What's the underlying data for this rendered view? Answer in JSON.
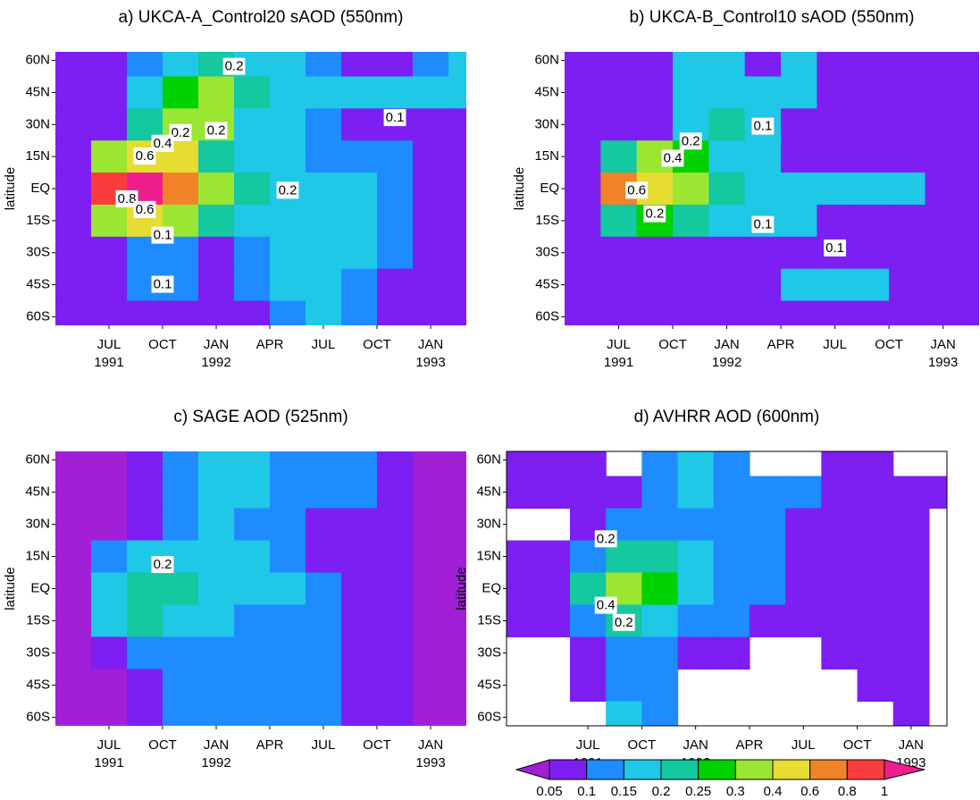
{
  "chart_data": [
    {
      "type": "contour",
      "title": "a) UKCA-A_Control20 sAOD (550nm)",
      "ylabel": "latitude",
      "xlim": [
        "1991-04",
        "1993-03"
      ],
      "ylim": [
        -64,
        64
      ],
      "xticks": [
        {
          "value": "1991-07",
          "label": [
            "JUL",
            "1991"
          ]
        },
        {
          "value": "1991-10",
          "label": [
            "OCT"
          ]
        },
        {
          "value": "1992-01",
          "label": [
            "JAN",
            "1992"
          ]
        },
        {
          "value": "1992-04",
          "label": [
            "APR"
          ]
        },
        {
          "value": "1992-07",
          "label": [
            "JUL"
          ]
        },
        {
          "value": "1992-10",
          "label": [
            "OCT"
          ]
        },
        {
          "value": "1993-01",
          "label": [
            "JAN",
            "1993"
          ]
        }
      ],
      "yticks": [
        {
          "value": 60,
          "label": "60N"
        },
        {
          "value": 45,
          "label": "45N"
        },
        {
          "value": 30,
          "label": "30N"
        },
        {
          "value": 15,
          "label": "15N"
        },
        {
          "value": 0,
          "label": "EQ"
        },
        {
          "value": -15,
          "label": "15S"
        },
        {
          "value": -30,
          "label": "30S"
        },
        {
          "value": -45,
          "label": "45S"
        },
        {
          "value": -60,
          "label": "60S"
        }
      ],
      "x": [
        "1991-05",
        "1991-07",
        "1991-09",
        "1991-11",
        "1992-01",
        "1992-03",
        "1992-05",
        "1992-07",
        "1992-09",
        "1992-11",
        "1993-01",
        "1993-03"
      ],
      "y": [
        60,
        45,
        30,
        15,
        0,
        -15,
        -30,
        -45,
        -60
      ],
      "z": [
        [
          0.07,
          0.07,
          0.12,
          0.18,
          0.22,
          0.17,
          0.16,
          0.12,
          0.07,
          0.07,
          0.12,
          0.17
        ],
        [
          0.07,
          0.07,
          0.16,
          0.28,
          0.35,
          0.2,
          0.17,
          0.16,
          0.16,
          0.16,
          0.16,
          0.16
        ],
        [
          0.07,
          0.07,
          0.2,
          0.35,
          0.3,
          0.18,
          0.16,
          0.12,
          0.07,
          0.07,
          0.07,
          0.07
        ],
        [
          0.07,
          0.3,
          0.45,
          0.4,
          0.22,
          0.17,
          0.16,
          0.12,
          0.12,
          0.12,
          0.07,
          0.07
        ],
        [
          0.07,
          0.9,
          1.1,
          0.6,
          0.3,
          0.2,
          0.17,
          0.16,
          0.16,
          0.12,
          0.07,
          0.07
        ],
        [
          0.07,
          0.3,
          0.4,
          0.3,
          0.2,
          0.17,
          0.16,
          0.16,
          0.16,
          0.12,
          0.07,
          0.07
        ],
        [
          0.07,
          0.07,
          0.12,
          0.12,
          0.07,
          0.12,
          0.16,
          0.17,
          0.16,
          0.12,
          0.07,
          0.07
        ],
        [
          0.07,
          0.07,
          0.12,
          0.12,
          0.07,
          0.12,
          0.16,
          0.16,
          0.12,
          0.07,
          0.07,
          0.07
        ],
        [
          0.07,
          0.07,
          0.07,
          0.07,
          0.07,
          0.07,
          0.12,
          0.16,
          0.12,
          0.07,
          0.07,
          0.07
        ]
      ],
      "annotations": [
        {
          "text": "0.2",
          "x": "1992-02",
          "y": 57
        },
        {
          "text": "0.1",
          "x": "1992-11",
          "y": 33
        },
        {
          "text": "0.2",
          "x": "1991-11",
          "y": 26
        },
        {
          "text": "0.4",
          "x": "1991-10",
          "y": 21
        },
        {
          "text": "0.2",
          "x": "1992-01",
          "y": 27
        },
        {
          "text": "0.6",
          "x": "1991-09",
          "y": 15
        },
        {
          "text": "0.8",
          "x": "1991-08",
          "y": -5
        },
        {
          "text": "0.6",
          "x": "1991-09",
          "y": -10
        },
        {
          "text": "0.2",
          "x": "1992-05",
          "y": -1
        },
        {
          "text": "0.1",
          "x": "1991-10",
          "y": -22
        },
        {
          "text": "0.1",
          "x": "1991-10",
          "y": -45
        }
      ]
    },
    {
      "type": "contour",
      "title": "b) UKCA-B_Control10 sAOD (550nm)",
      "ylabel": "latitude",
      "xlim": [
        "1991-04",
        "1993-03"
      ],
      "ylim": [
        -64,
        64
      ],
      "xticks": [
        {
          "value": "1991-07",
          "label": [
            "JUL",
            "1991"
          ]
        },
        {
          "value": "1991-10",
          "label": [
            "OCT"
          ]
        },
        {
          "value": "1992-01",
          "label": [
            "JAN",
            "1992"
          ]
        },
        {
          "value": "1992-04",
          "label": [
            "APR"
          ]
        },
        {
          "value": "1992-07",
          "label": [
            "JUL"
          ]
        },
        {
          "value": "1992-10",
          "label": [
            "OCT"
          ]
        },
        {
          "value": "1993-01",
          "label": [
            "JAN",
            "1993"
          ]
        }
      ],
      "yticks": [
        {
          "value": 60,
          "label": "60N"
        },
        {
          "value": 45,
          "label": "45N"
        },
        {
          "value": 30,
          "label": "30N"
        },
        {
          "value": 15,
          "label": "15N"
        },
        {
          "value": 0,
          "label": "EQ"
        },
        {
          "value": -15,
          "label": "15S"
        },
        {
          "value": -30,
          "label": "30S"
        },
        {
          "value": -45,
          "label": "45S"
        },
        {
          "value": -60,
          "label": "60S"
        }
      ],
      "x": [
        "1991-05",
        "1991-07",
        "1991-09",
        "1991-11",
        "1992-01",
        "1992-03",
        "1992-05",
        "1992-07",
        "1992-09",
        "1992-11",
        "1993-01",
        "1993-03"
      ],
      "y": [
        60,
        45,
        30,
        15,
        0,
        -15,
        -30,
        -45,
        -60
      ],
      "z": [
        [
          0.07,
          0.07,
          0.07,
          0.16,
          0.16,
          0.07,
          0.16,
          0.07,
          0.07,
          0.07,
          0.07,
          0.07
        ],
        [
          0.07,
          0.07,
          0.07,
          0.16,
          0.17,
          0.16,
          0.16,
          0.07,
          0.07,
          0.07,
          0.07,
          0.07
        ],
        [
          0.07,
          0.07,
          0.07,
          0.16,
          0.22,
          0.16,
          0.07,
          0.07,
          0.07,
          0.07,
          0.07,
          0.07
        ],
        [
          0.07,
          0.2,
          0.35,
          0.25,
          0.16,
          0.16,
          0.07,
          0.07,
          0.07,
          0.07,
          0.07,
          0.07
        ],
        [
          0.07,
          0.7,
          0.5,
          0.3,
          0.22,
          0.16,
          0.16,
          0.16,
          0.16,
          0.16,
          0.07,
          0.07
        ],
        [
          0.07,
          0.2,
          0.25,
          0.2,
          0.16,
          0.16,
          0.16,
          0.07,
          0.07,
          0.07,
          0.07,
          0.07
        ],
        [
          0.07,
          0.07,
          0.07,
          0.07,
          0.07,
          0.07,
          0.07,
          0.07,
          0.07,
          0.07,
          0.07,
          0.07
        ],
        [
          0.07,
          0.07,
          0.07,
          0.07,
          0.07,
          0.07,
          0.16,
          0.16,
          0.16,
          0.07,
          0.07,
          0.07
        ],
        [
          0.07,
          0.07,
          0.07,
          0.07,
          0.07,
          0.07,
          0.07,
          0.07,
          0.07,
          0.07,
          0.07,
          0.07
        ]
      ],
      "annotations": [
        {
          "text": "0.1",
          "x": "1992-03",
          "y": 29
        },
        {
          "text": "0.2",
          "x": "1991-11",
          "y": 22
        },
        {
          "text": "0.4",
          "x": "1991-10",
          "y": 14
        },
        {
          "text": "0.6",
          "x": "1991-08",
          "y": -1
        },
        {
          "text": "0.2",
          "x": "1991-09",
          "y": -12
        },
        {
          "text": "0.1",
          "x": "1992-03",
          "y": -17
        },
        {
          "text": "0.1",
          "x": "1992-07",
          "y": -28
        }
      ]
    },
    {
      "type": "contour",
      "title": "c) SAGE AOD (525nm)",
      "ylabel": "latitude",
      "xlim": [
        "1991-04",
        "1993-03"
      ],
      "ylim": [
        -64,
        64
      ],
      "xticks": [
        {
          "value": "1991-07",
          "label": [
            "JUL",
            "1991"
          ]
        },
        {
          "value": "1991-10",
          "label": [
            "OCT"
          ]
        },
        {
          "value": "1992-01",
          "label": [
            "JAN",
            "1992"
          ]
        },
        {
          "value": "1992-04",
          "label": [
            "APR"
          ]
        },
        {
          "value": "1992-07",
          "label": [
            "JUL"
          ]
        },
        {
          "value": "1992-10",
          "label": [
            "OCT"
          ]
        },
        {
          "value": "1993-01",
          "label": [
            "JAN",
            "1993"
          ]
        }
      ],
      "yticks": [
        {
          "value": 60,
          "label": "60N"
        },
        {
          "value": 45,
          "label": "45N"
        },
        {
          "value": 30,
          "label": "30N"
        },
        {
          "value": 15,
          "label": "15N"
        },
        {
          "value": 0,
          "label": "EQ"
        },
        {
          "value": -15,
          "label": "15S"
        },
        {
          "value": -30,
          "label": "30S"
        },
        {
          "value": -45,
          "label": "45S"
        },
        {
          "value": -60,
          "label": "60S"
        }
      ],
      "x": [
        "1991-05",
        "1991-07",
        "1991-09",
        "1991-11",
        "1992-01",
        "1992-03",
        "1992-05",
        "1992-07",
        "1992-09",
        "1992-11",
        "1993-01",
        "1993-03"
      ],
      "y": [
        60,
        45,
        30,
        15,
        0,
        -15,
        -30,
        -45,
        -60
      ],
      "z": [
        [
          0.04,
          0.04,
          0.08,
          0.12,
          0.17,
          0.17,
          0.12,
          0.12,
          0.12,
          0.08,
          0.04,
          0.04
        ],
        [
          0.04,
          0.04,
          0.08,
          0.12,
          0.17,
          0.17,
          0.12,
          0.12,
          0.12,
          0.08,
          0.04,
          0.04
        ],
        [
          0.04,
          0.04,
          0.08,
          0.12,
          0.17,
          0.12,
          0.12,
          0.08,
          0.08,
          0.08,
          0.04,
          0.04
        ],
        [
          0.04,
          0.12,
          0.17,
          0.17,
          0.17,
          0.17,
          0.12,
          0.08,
          0.08,
          0.08,
          0.04,
          0.04
        ],
        [
          0.04,
          0.17,
          0.22,
          0.22,
          0.17,
          0.17,
          0.17,
          0.12,
          0.08,
          0.08,
          0.04,
          0.04
        ],
        [
          0.04,
          0.17,
          0.22,
          0.17,
          0.17,
          0.12,
          0.12,
          0.12,
          0.08,
          0.08,
          0.04,
          0.04
        ],
        [
          0.04,
          0.08,
          0.12,
          0.12,
          0.12,
          0.12,
          0.12,
          0.12,
          0.08,
          0.08,
          0.04,
          0.04
        ],
        [
          0.04,
          0.04,
          0.08,
          0.12,
          0.12,
          0.12,
          0.12,
          0.12,
          0.08,
          0.08,
          0.04,
          0.04
        ],
        [
          0.04,
          0.04,
          0.08,
          0.12,
          0.12,
          0.12,
          0.12,
          0.12,
          0.08,
          0.08,
          0.04,
          0.04
        ]
      ],
      "annotations": [
        {
          "text": "0.2",
          "x": "1991-10",
          "y": 11
        }
      ]
    },
    {
      "type": "contour",
      "title": "d) AVHRR AOD (600nm)",
      "ylabel": "latitude",
      "frame": true,
      "xlim": [
        "1991-02-15",
        "1993-03"
      ],
      "ylim": [
        -64,
        64
      ],
      "xticks": [
        {
          "value": "1991-07",
          "label": [
            "JUL",
            "1991"
          ]
        },
        {
          "value": "1991-10",
          "label": [
            "OCT"
          ]
        },
        {
          "value": "1992-01",
          "label": [
            "JAN",
            "1992"
          ]
        },
        {
          "value": "1992-04",
          "label": [
            "APR"
          ]
        },
        {
          "value": "1992-07",
          "label": [
            "JUL"
          ]
        },
        {
          "value": "1992-10",
          "label": [
            "OCT"
          ]
        },
        {
          "value": "1993-01",
          "label": [
            "JAN",
            "1993"
          ]
        }
      ],
      "yticks": [
        {
          "value": 60,
          "label": "60N"
        },
        {
          "value": 45,
          "label": "45N"
        },
        {
          "value": 30,
          "label": "30N"
        },
        {
          "value": 15,
          "label": "15N"
        },
        {
          "value": 0,
          "label": "EQ"
        },
        {
          "value": -15,
          "label": "15S"
        },
        {
          "value": -30,
          "label": "30S"
        },
        {
          "value": -45,
          "label": "45S"
        },
        {
          "value": -60,
          "label": "60S"
        }
      ],
      "x": [
        "1991-03",
        "1991-05",
        "1991-07",
        "1991-09",
        "1991-11",
        "1992-01",
        "1992-03",
        "1992-05",
        "1992-07",
        "1992-09",
        "1992-11",
        "1993-01",
        "1993-03"
      ],
      "y": [
        60,
        45,
        30,
        15,
        0,
        -15,
        -30,
        -45,
        -60
      ],
      "z": [
        [
          0.07,
          0.07,
          0.07,
          null,
          0.12,
          0.17,
          0.12,
          null,
          null,
          0.07,
          0.07,
          null,
          null
        ],
        [
          0.07,
          0.07,
          0.07,
          0.07,
          0.12,
          0.17,
          0.12,
          0.12,
          0.12,
          0.07,
          0.07,
          0.07,
          0.07
        ],
        [
          null,
          null,
          0.07,
          0.12,
          0.12,
          0.12,
          0.12,
          0.12,
          0.07,
          0.07,
          0.07,
          0.07,
          null
        ],
        [
          0.07,
          0.07,
          0.12,
          0.22,
          0.22,
          0.17,
          0.12,
          0.12,
          0.07,
          0.07,
          0.07,
          0.07,
          null
        ],
        [
          0.07,
          0.07,
          0.22,
          0.35,
          0.27,
          0.17,
          0.12,
          0.12,
          0.07,
          0.07,
          0.07,
          0.07,
          null
        ],
        [
          0.07,
          0.07,
          0.12,
          0.22,
          0.17,
          0.12,
          0.12,
          0.07,
          0.07,
          0.07,
          0.07,
          0.07,
          null
        ],
        [
          null,
          null,
          0.07,
          0.12,
          0.12,
          0.07,
          0.07,
          null,
          null,
          0.07,
          0.07,
          0.07,
          null
        ],
        [
          null,
          null,
          0.07,
          0.12,
          0.12,
          null,
          null,
          null,
          null,
          null,
          0.07,
          0.07,
          null
        ],
        [
          null,
          null,
          null,
          0.17,
          0.12,
          null,
          null,
          null,
          null,
          null,
          null,
          0.07,
          null
        ]
      ],
      "annotations": [
        {
          "text": "0.2",
          "x": "1991-08",
          "y": 23
        },
        {
          "text": "0.4",
          "x": "1991-08",
          "y": -8
        },
        {
          "text": "0.2",
          "x": "1991-09",
          "y": -16
        }
      ]
    }
  ],
  "colorbar": {
    "levels": [
      0.05,
      0.1,
      0.15,
      0.2,
      0.25,
      0.3,
      0.4,
      0.6,
      0.8,
      1
    ],
    "colors": [
      "#a11fd6",
      "#7d1ef2",
      "#1e8cff",
      "#1ec8e6",
      "#14c8a0",
      "#00d200",
      "#9be632",
      "#e6dc32",
      "#f08228",
      "#fa3c3c",
      "#f01e8c"
    ]
  }
}
